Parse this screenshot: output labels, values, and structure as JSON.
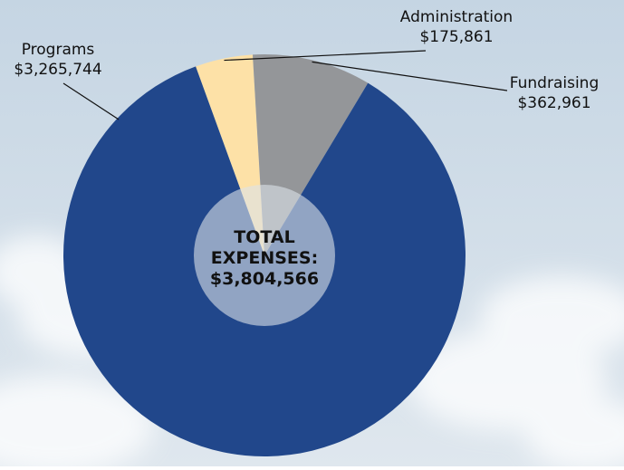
{
  "colors": {
    "sky_top": "#c5d5e3",
    "sky_bottom": "#dfe7ee",
    "cloud": "#ffffff",
    "leader_line": "#111111",
    "label_text": "#111111",
    "center_text": "#111111"
  },
  "chart_data": {
    "type": "pie",
    "variant": "pie with translucent center disc",
    "title": "",
    "start_angle_deg": -20,
    "direction": "clockwise",
    "slices": [
      {
        "name": "Administration",
        "value_label": "$175,861",
        "value": 175861,
        "color": "#fde1a7"
      },
      {
        "name": "Fundraising",
        "value_label": "$362,961",
        "value": 362961,
        "color": "#949699"
      },
      {
        "name": "Programs",
        "value_label": "$3,265,744",
        "value": 3265744,
        "color": "#21478b"
      }
    ],
    "center_label": {
      "lines": [
        "TOTAL",
        "EXPENSES:",
        "$3,804,566"
      ],
      "total": 3804566,
      "disc_color": "#dce3ea",
      "disc_opacity": 0.6
    },
    "legend": "none",
    "labels_placement": "outside with leader lines"
  }
}
